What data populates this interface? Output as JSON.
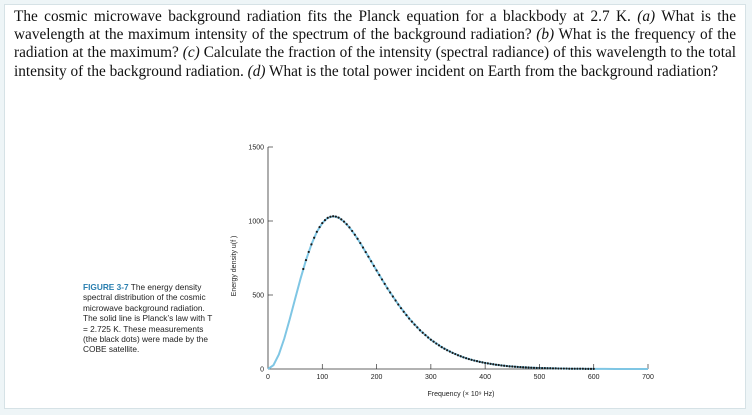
{
  "problem": {
    "intro": "The cosmic microwave background radiation fits the Planck equation for a blackbody at 2.7 K. ",
    "a_tag": "(a)",
    "a_text": " What is the wavelength at the maximum intensity of the spectrum of the background radiation? ",
    "b_tag": "(b)",
    "b_text": " What is the frequency of the radiation at the maximum? ",
    "c_tag": "(c)",
    "c_text": " Calculate the fraction of the intensity (spectral radiance) of this wavelength to the total intensity of the background radiation. ",
    "d_tag": "(d)",
    "d_text": " What is the total power incident on Earth from the background radiation?"
  },
  "caption": {
    "figure_label": "FIGURE 3-7",
    "text": " The energy density spectral distribution of the cosmic microwave background radiation. The solid line is Planck’s law with T = 2.725 K. These measurements (the black dots) were made by the COBE satellite."
  },
  "colors": {
    "curve": "#7fc6e4",
    "dots": "#1a1a1a",
    "caption_accent": "#2a7fb0"
  },
  "chart_data": {
    "type": "line",
    "xlabel": "Frequency (× 10⁹ Hz)",
    "ylabel": "Energy density u(f )",
    "xlim": [
      0,
      700
    ],
    "ylim": [
      0,
      1500
    ],
    "xticks": [
      0,
      100,
      200,
      300,
      400,
      500,
      600,
      700
    ],
    "yticks": [
      0,
      500,
      1000,
      1500
    ],
    "series": [
      {
        "kind": "line",
        "x": [
          0,
          10,
          20,
          30,
          40,
          50,
          60,
          70,
          80,
          90,
          100,
          110,
          120,
          130,
          140,
          150,
          160,
          170,
          180,
          190,
          200,
          220,
          240,
          260,
          280,
          300,
          320,
          340,
          360,
          380,
          400,
          420,
          440,
          460,
          480,
          500,
          520,
          540,
          560,
          580,
          600,
          620,
          640,
          660,
          680,
          700
        ],
        "y": [
          0,
          26,
          98,
          206,
          336,
          475,
          611,
          736,
          842,
          927,
          986,
          1021,
          1032,
          1023,
          996,
          957,
          907,
          851,
          790,
          728,
          666,
          545,
          436,
          341,
          262,
          198,
          148,
          109,
          79,
          57,
          41,
          29,
          20,
          14,
          10,
          7,
          5,
          3,
          2,
          2,
          1,
          1,
          0,
          0,
          0,
          0
        ]
      },
      {
        "kind": "dots",
        "x": [
          65,
          70,
          75,
          80,
          85,
          90,
          95,
          100,
          105,
          110,
          115,
          120,
          125,
          130,
          135,
          140,
          145,
          150,
          155,
          160,
          165,
          170,
          175,
          180,
          185,
          190,
          195,
          200,
          205,
          210,
          215,
          220,
          225,
          230,
          235,
          240,
          245,
          250,
          255,
          260,
          265,
          270,
          275,
          280,
          285,
          290,
          295,
          300,
          305,
          310,
          315,
          320,
          325,
          330,
          335,
          340,
          345,
          350,
          355,
          360,
          365,
          370,
          375,
          380,
          385,
          390,
          395,
          400,
          405,
          410,
          415,
          420,
          425,
          430,
          435,
          440,
          445,
          450,
          455,
          460,
          465,
          470,
          475,
          480,
          485,
          490,
          495,
          500,
          505,
          510,
          515,
          520,
          525,
          530,
          535,
          540,
          545,
          550,
          555,
          560,
          565,
          570,
          575,
          580,
          585,
          590,
          595,
          600
        ],
        "y": [
          676,
          736,
          791,
          842,
          887,
          927,
          959,
          986,
          1006,
          1021,
          1029,
          1032,
          1030,
          1023,
          1011,
          996,
          978,
          957,
          933,
          907,
          880,
          851,
          821,
          790,
          759,
          728,
          697,
          666,
          635,
          605,
          575,
          545,
          517,
          490,
          463,
          436,
          411,
          387,
          364,
          341,
          320,
          300,
          281,
          262,
          245,
          229,
          213,
          198,
          185,
          172,
          160,
          148,
          137,
          127,
          118,
          109,
          101,
          93,
          86,
          79,
          73,
          67,
          62,
          57,
          53,
          48,
          45,
          41,
          38,
          35,
          32,
          29,
          27,
          24,
          22,
          20,
          18,
          17,
          15,
          14,
          13,
          12,
          11,
          10,
          9,
          8,
          7,
          7,
          6,
          6,
          5,
          5,
          4,
          4,
          3,
          3,
          3,
          3,
          2,
          2,
          2,
          2,
          2,
          2,
          1,
          1,
          1,
          1
        ]
      }
    ]
  }
}
